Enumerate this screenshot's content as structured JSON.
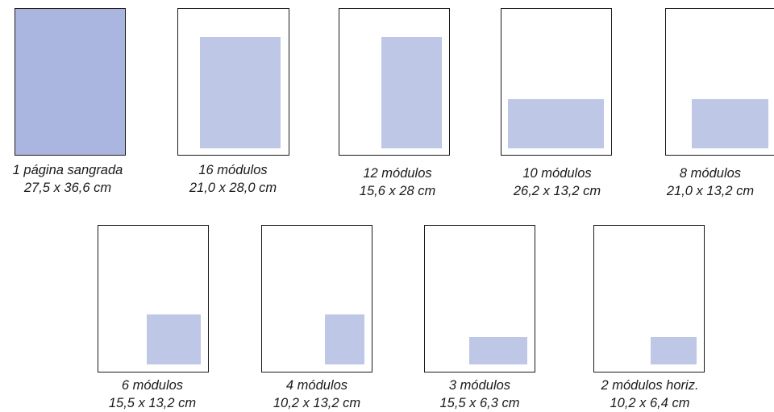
{
  "formats": [
    {
      "name": "1 página sangrada",
      "size": "27,5 x 36,6 cm"
    },
    {
      "name": "16 módulos",
      "size": "21,0 x 28,0 cm"
    },
    {
      "name": "12 módulos",
      "size": "15,6 x 28 cm"
    },
    {
      "name": "10 módulos",
      "size": "26,2 x 13,2 cm"
    },
    {
      "name": "8 módulos",
      "size": "21,0 x 13,2 cm"
    },
    {
      "name": "6 módulos",
      "size": "15,5 x 13,2 cm"
    },
    {
      "name": "4 módulos",
      "size": "10,2 x 13,2 cm"
    },
    {
      "name": "3 módulos",
      "size": "15,5 x 6,3 cm"
    },
    {
      "name": "2 módulos horiz.",
      "size": "10,2 x 6,4 cm"
    }
  ],
  "colors": {
    "bleed_fill": "#aab6df",
    "module_fill": "#bec7e6",
    "border": "#1a1a1a"
  }
}
